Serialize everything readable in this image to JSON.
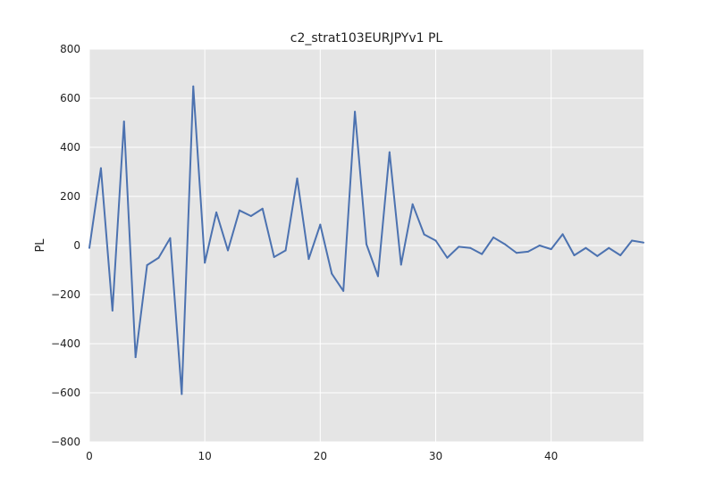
{
  "colors": {
    "plot_background": "#e5e5e5",
    "grid": "#ffffff",
    "line": "#4c72b0",
    "text": "#222222"
  },
  "chart_data": {
    "type": "line",
    "title": "c2_strat103EURJPYv1 PL",
    "xlabel": "",
    "ylabel": "PL",
    "xlim": [
      0,
      48
    ],
    "ylim": [
      -800,
      800
    ],
    "x_ticks": [
      0,
      10,
      20,
      30,
      40
    ],
    "y_ticks": [
      -800,
      -600,
      -400,
      -200,
      0,
      200,
      400,
      600,
      800
    ],
    "x_tick_labels": [
      "0",
      "10",
      "20",
      "30",
      "40"
    ],
    "y_tick_labels": [
      "−800",
      "−600",
      "−400",
      "−200",
      "0",
      "200",
      "400",
      "600",
      "800"
    ],
    "grid": true,
    "series": [
      {
        "x": [
          0,
          1,
          2,
          3,
          4,
          5,
          6,
          7,
          8,
          9,
          10,
          11,
          12,
          13,
          14,
          15,
          16,
          17,
          18,
          19,
          20,
          21,
          22,
          23,
          24,
          25,
          26,
          27,
          28,
          29,
          30,
          31,
          32,
          33,
          34,
          35,
          36,
          37,
          38,
          39,
          40,
          41,
          42,
          43,
          44,
          45,
          46,
          47,
          48
        ],
        "values": [
          -10,
          315,
          -265,
          505,
          -455,
          -80,
          -50,
          30,
          -605,
          648,
          -70,
          135,
          -20,
          143,
          120,
          150,
          -47,
          -20,
          273,
          -55,
          85,
          -115,
          -185,
          545,
          5,
          -125,
          380,
          -78,
          168,
          45,
          20,
          -50,
          -5,
          -10,
          -35,
          33,
          5,
          -30,
          -25,
          0,
          -15,
          46,
          -40,
          -10,
          -43,
          -10,
          -40,
          20,
          12
        ]
      }
    ]
  }
}
